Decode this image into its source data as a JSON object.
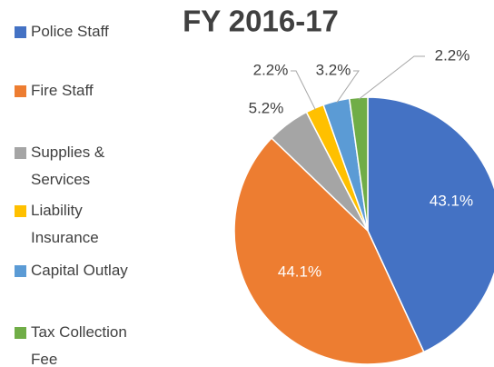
{
  "chart_data": {
    "type": "pie",
    "title": "FY 2016-17",
    "categories": [
      "Police Staff",
      "Fire Staff",
      "Supplies & Services",
      "Liability Insurance",
      "Capital Outlay",
      "Tax Collection Fee"
    ],
    "values": [
      43.1,
      44.1,
      5.2,
      2.2,
      3.2,
      2.2
    ],
    "value_labels": [
      "43.1%",
      "44.1%",
      "5.2%",
      "2.2%",
      "3.2%",
      "2.2%"
    ],
    "colors": [
      "#4472c4",
      "#ed7d31",
      "#a5a5a5",
      "#ffc000",
      "#5b9bd5",
      "#70ad47"
    ],
    "legend": "left"
  }
}
